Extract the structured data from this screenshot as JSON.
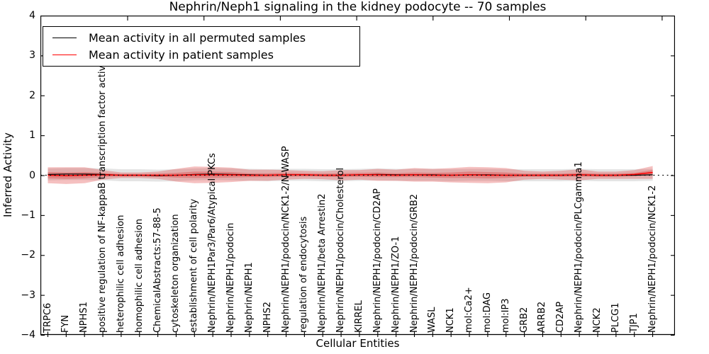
{
  "chart_data": {
    "type": "line",
    "title": "Nephrin/Neph1 signaling in the kidney podocyte -- 70 samples",
    "xlabel": "Cellular Entities",
    "ylabel": "Inferred Activity",
    "ylim": [
      -4,
      4
    ],
    "ytick_labels": [
      "4",
      "3",
      "2",
      "1",
      "0",
      "−1",
      "−2",
      "−3",
      "−4"
    ],
    "grid": false,
    "legend_position": "upper left",
    "zero_line": {
      "y": 0,
      "style": "dotted",
      "color": "#000000"
    },
    "band_colors": {
      "permuted": "#888888",
      "patient": "#de2d2d"
    },
    "categories": [
      "TRPC6",
      "FYN",
      "NPHS1",
      "positive regulation of NF-kappaB transcription factor activity",
      "heterophilic cell adhesion",
      "homophilic cell adhesion",
      "ChemicalAbstracts:57-88-5",
      "cytoskeleton organization",
      "establishment of cell polarity",
      "Nephrin/NEPH1Par3/Par6/Atypical PKCs",
      "Nephrin/NEPH1/podocin",
      "Nephrin/NEPH1",
      "NPHS2",
      "Nephrin/NEPH1/podocin/NCK1-2/N-WASP",
      "regulation of endocytosis",
      "Nephrin/NEPH1/beta Arrestin2",
      "Nephrin/NEPH1/podocin/Cholesterol",
      "KIRREL",
      "Nephrin/NEPH1/podocin/CD2AP",
      "Nephrin/NEPH1/ZO-1",
      "Nephrin/NEPH1/podocin/GRB2",
      "WASL",
      "NCK1",
      "mol:Ca2+",
      "mol:DAG",
      "mol:IP3",
      "GRB2",
      "ARRB2",
      "CD2AP",
      "Nephrin/NEPH1/podocin/PLCgamma1",
      "NCK2",
      "PLCG1",
      "TJP1",
      "Nephrin/NEPH1/podocin/NCK1-2"
    ],
    "series": [
      {
        "name": "Mean activity in all permuted samples",
        "color": "#000000",
        "values": [
          0.02,
          0.03,
          0.03,
          0.02,
          0.0,
          0.0,
          -0.01,
          0.0,
          0.02,
          0.03,
          0.02,
          0.01,
          0.0,
          0.01,
          0.01,
          0.0,
          0.0,
          0.01,
          0.02,
          0.01,
          0.01,
          0.01,
          0.0,
          0.01,
          0.01,
          0.0,
          0.0,
          0.0,
          0.0,
          0.01,
          0.0,
          0.0,
          0.0,
          0.01
        ],
        "band_halfwidth": 0.15
      },
      {
        "name": "Mean activity in patient samples",
        "color": "#ff0000",
        "values": [
          0.0,
          -0.01,
          0.0,
          0.01,
          0.0,
          0.0,
          0.0,
          0.0,
          0.01,
          0.01,
          0.01,
          0.0,
          0.0,
          0.01,
          0.01,
          0.0,
          0.0,
          0.01,
          0.01,
          0.0,
          0.01,
          0.0,
          0.0,
          0.01,
          0.0,
          0.0,
          0.0,
          0.0,
          0.0,
          0.01,
          0.0,
          0.0,
          0.02,
          0.07
        ],
        "band_outer_halfwidth": [
          0.2,
          0.21,
          0.2,
          0.12,
          0.07,
          0.07,
          0.09,
          0.16,
          0.21,
          0.2,
          0.18,
          0.14,
          0.14,
          0.12,
          0.1,
          0.1,
          0.13,
          0.12,
          0.15,
          0.14,
          0.17,
          0.16,
          0.18,
          0.2,
          0.2,
          0.18,
          0.11,
          0.09,
          0.11,
          0.14,
          0.09,
          0.09,
          0.11,
          0.16
        ],
        "band_inner_halfwidth": [
          0.08,
          0.08,
          0.08,
          0.05,
          0.03,
          0.03,
          0.04,
          0.06,
          0.08,
          0.08,
          0.07,
          0.05,
          0.05,
          0.05,
          0.04,
          0.04,
          0.05,
          0.05,
          0.06,
          0.05,
          0.06,
          0.06,
          0.07,
          0.08,
          0.08,
          0.07,
          0.04,
          0.04,
          0.04,
          0.05,
          0.04,
          0.04,
          0.04,
          0.06
        ]
      }
    ]
  }
}
